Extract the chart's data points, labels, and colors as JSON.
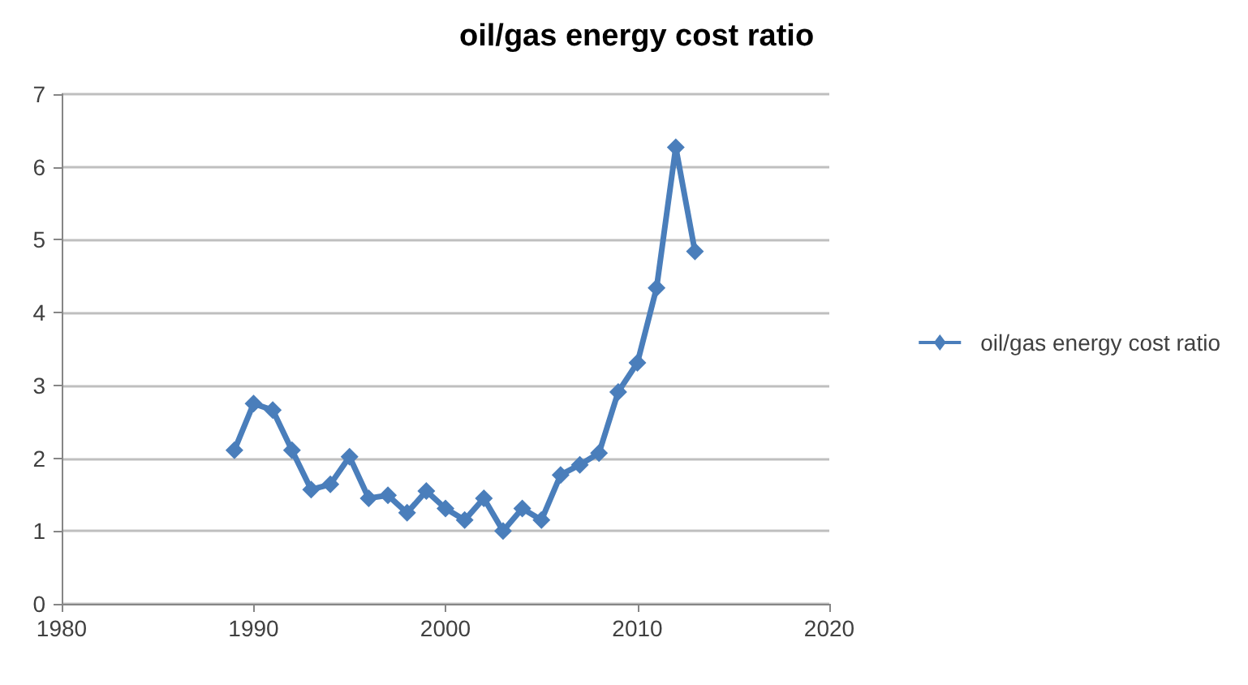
{
  "chart_data": {
    "type": "line",
    "title": "oil/gas energy cost ratio",
    "series": [
      {
        "name": "oil/gas energy cost ratio",
        "color": "#4a7ebb",
        "x": [
          1989,
          1990,
          1991,
          1992,
          1993,
          1994,
          1995,
          1996,
          1997,
          1998,
          1999,
          2000,
          2001,
          2002,
          2003,
          2004,
          2005,
          2006,
          2007,
          2008,
          2009,
          2010,
          2011,
          2012,
          2013
        ],
        "values": [
          2.11,
          2.75,
          2.66,
          2.11,
          1.57,
          1.64,
          2.02,
          1.45,
          1.49,
          1.25,
          1.55,
          1.31,
          1.15,
          1.45,
          1.0,
          1.31,
          1.15,
          1.77,
          1.91,
          2.07,
          2.91,
          3.31,
          4.34,
          6.27,
          4.84
        ]
      }
    ],
    "xlim": [
      1980,
      2020
    ],
    "xticks": [
      1980,
      1990,
      2000,
      2010,
      2020
    ],
    "ylim": [
      0,
      7
    ],
    "yticks": [
      0,
      1,
      2,
      3,
      4,
      5,
      6,
      7
    ],
    "grid": "y",
    "legend": "right",
    "marker": "diamond",
    "line_style": "solid"
  }
}
